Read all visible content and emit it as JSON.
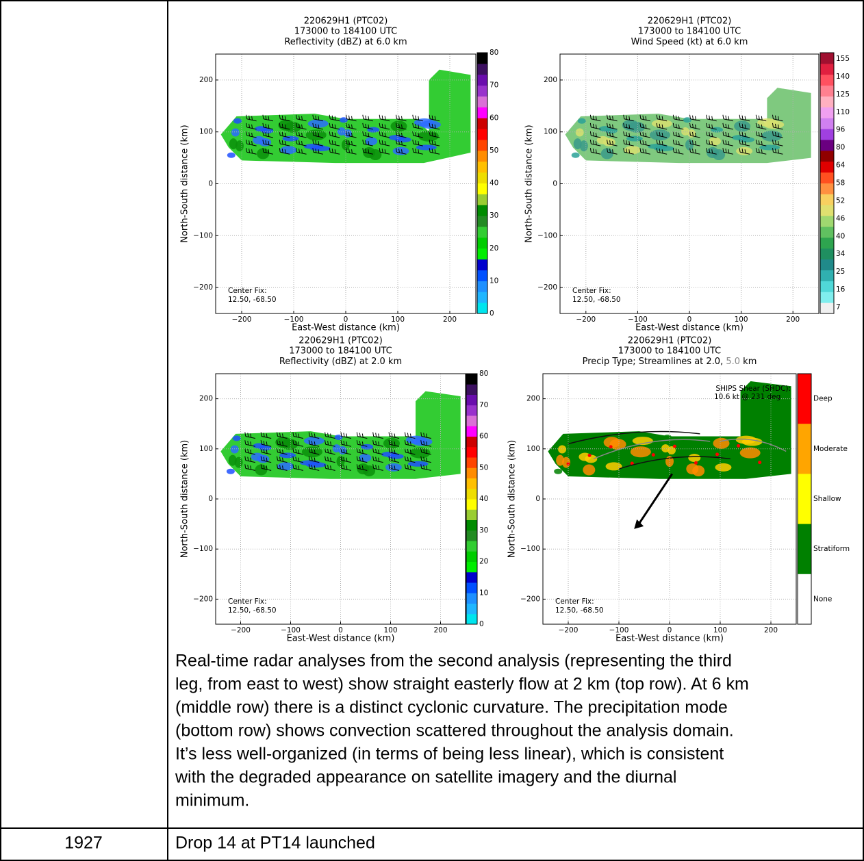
{
  "panels": [
    {
      "title": [
        "220629H1 (PTC02)",
        "173000 to 184100 UTC",
        "Reflectivity (dBZ) at 6.0 km"
      ],
      "xlabel": "East-West distance (km)",
      "ylabel": "North-South distance (km)",
      "xticks": [
        "−200",
        "−100",
        "0",
        "100",
        "200"
      ],
      "yticks": [
        "200",
        "100",
        "0",
        "−100",
        "−200"
      ],
      "colorbar": [
        "80",
        "70",
        "60",
        "50",
        "40",
        "30",
        "20",
        "10",
        "0"
      ],
      "note": [
        "Center Fix:",
        "12.50, -68.50"
      ]
    },
    {
      "title": [
        "220629H1 (PTC02)",
        "173000 to 184100 UTC",
        "Wind Speed (kt) at 6.0 km"
      ],
      "xlabel": "East-West distance (km)",
      "ylabel": "North-South distance (km)",
      "xticks": [
        "−200",
        "−100",
        "0",
        "100",
        "200"
      ],
      "yticks": [
        "200",
        "100",
        "0",
        "−100",
        "−200"
      ],
      "colorbar": [
        "155",
        "140",
        "125",
        "110",
        "96",
        "80",
        "64",
        "58",
        "52",
        "46",
        "40",
        "34",
        "25",
        "16",
        "7"
      ],
      "note": [
        "Center Fix:",
        "12.50, -68.50"
      ]
    },
    {
      "title": [
        "220629H1 (PTC02)",
        "173000 to 184100 UTC",
        "Reflectivity (dBZ) at 2.0 km"
      ],
      "xlabel": "East-West distance (km)",
      "ylabel": "North-South distance (km)",
      "xticks": [
        "−200",
        "−100",
        "0",
        "100",
        "200"
      ],
      "yticks": [
        "200",
        "100",
        "0",
        "−100",
        "−200"
      ],
      "colorbar": [
        "80",
        "70",
        "60",
        "50",
        "40",
        "30",
        "20",
        "10",
        "0"
      ],
      "note": [
        "Center Fix:",
        "12.50, -68.50"
      ]
    },
    {
      "title": [
        "220629H1 (PTC02)",
        "173000 to 184100 UTC",
        "Precip Type; Streamlines at 2.0, ",
        "5.0",
        " km"
      ],
      "xlabel": "East-West distance (km)",
      "ylabel": "North-South distance (km)",
      "xticks": [
        "−200",
        "−100",
        "0",
        "100",
        "200"
      ],
      "yticks": [
        "200",
        "100",
        "0",
        "−100",
        "−200"
      ],
      "colorbar": [
        "Deep",
        "Moderate",
        "Shallow",
        "Stratiform",
        "None"
      ],
      "note": [
        "Center Fix:",
        "12.50, -68.50"
      ],
      "shear": [
        "SHIPS Shear (SHDC):",
        "10.6 kt @ 231 deg"
      ]
    }
  ],
  "paragraph": [
    "Real-time radar analyses from the second analysis (representing the third",
    "leg, from east to west) show straight easterly flow at 2 km (top row). At 6 km",
    "(middle row) there is a distinct cyclonic curvature. The precipitation mode",
    "(bottom row) shows convection scattered throughout the analysis domain.",
    "It’s less well-organized (in terms of being less linear), which is consistent",
    "with the degraded appearance on satellite imagery and the diurnal",
    "minimum."
  ],
  "rows": [
    {
      "time": "1927",
      "text": "Drop 14 at PT14 launched"
    }
  ]
}
